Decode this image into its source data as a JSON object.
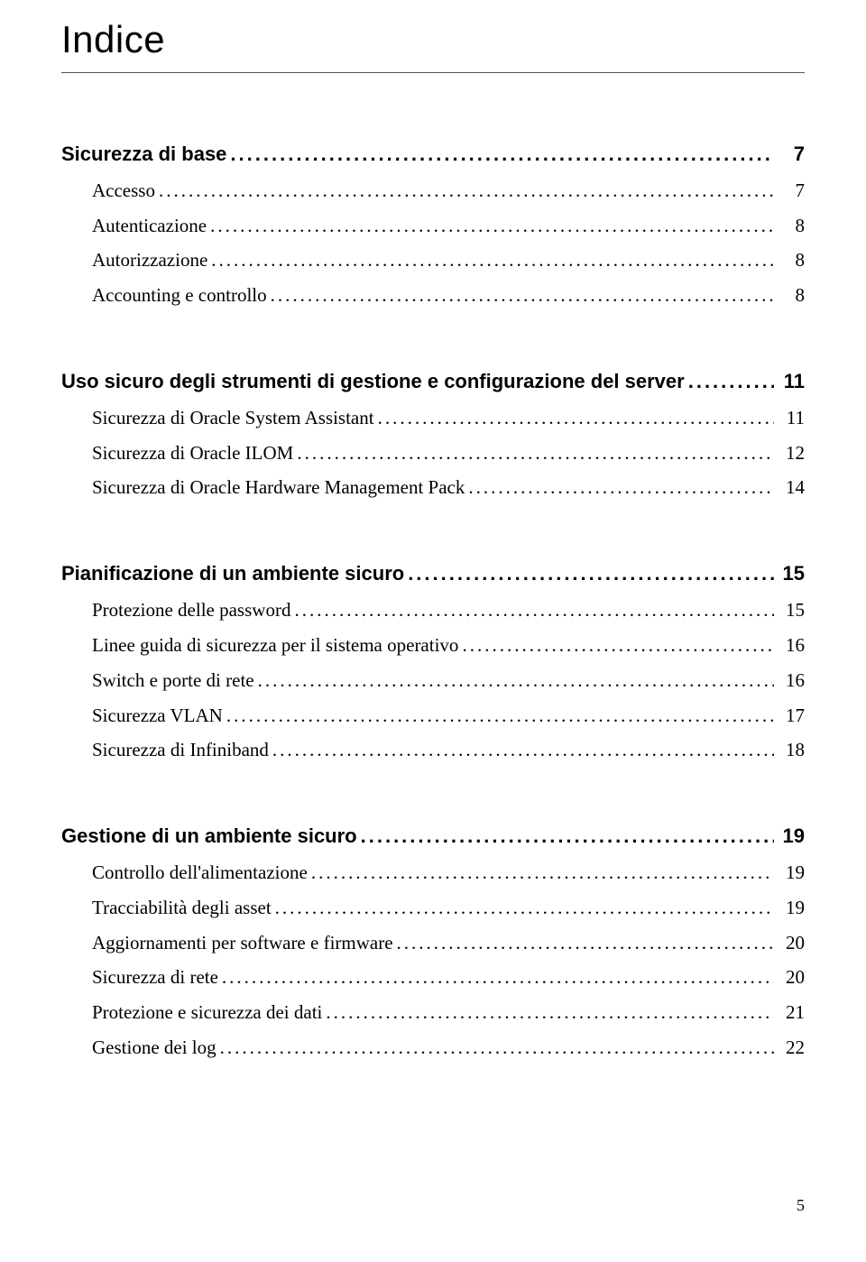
{
  "title": "Indice",
  "page_number": "5",
  "sections": [
    {
      "heading": {
        "label": "Sicurezza di base",
        "page": "7"
      },
      "items": [
        {
          "label": "Accesso",
          "page": "7"
        },
        {
          "label": "Autenticazione",
          "page": "8"
        },
        {
          "label": "Autorizzazione",
          "page": "8"
        },
        {
          "label": "Accounting e controllo",
          "page": "8"
        }
      ]
    },
    {
      "heading": {
        "label": "Uso sicuro degli strumenti di gestione e configurazione del server",
        "page": "11"
      },
      "items": [
        {
          "label": "Sicurezza di Oracle System Assistant",
          "page": "11"
        },
        {
          "label": "Sicurezza di Oracle ILOM",
          "page": "12"
        },
        {
          "label": "Sicurezza di Oracle Hardware Management Pack",
          "page": "14"
        }
      ]
    },
    {
      "heading": {
        "label": "Pianificazione di un ambiente sicuro",
        "page": "15"
      },
      "items": [
        {
          "label": "Protezione delle password",
          "page": "15"
        },
        {
          "label": "Linee guida di sicurezza per il sistema operativo",
          "page": "16"
        },
        {
          "label": "Switch e porte di rete",
          "page": "16"
        },
        {
          "label": "Sicurezza VLAN",
          "page": "17"
        },
        {
          "label": "Sicurezza di Infiniband",
          "page": "18"
        }
      ]
    },
    {
      "heading": {
        "label": "Gestione di un ambiente sicuro",
        "page": "19"
      },
      "items": [
        {
          "label": "Controllo dell'alimentazione",
          "page": "19"
        },
        {
          "label": "Tracciabilità degli asset",
          "page": "19"
        },
        {
          "label": "Aggiornamenti per software e firmware",
          "page": "20"
        },
        {
          "label": "Sicurezza di rete",
          "page": "20"
        },
        {
          "label": "Protezione e sicurezza dei dati",
          "page": "21"
        },
        {
          "label": "Gestione dei log",
          "page": "22"
        }
      ]
    }
  ]
}
